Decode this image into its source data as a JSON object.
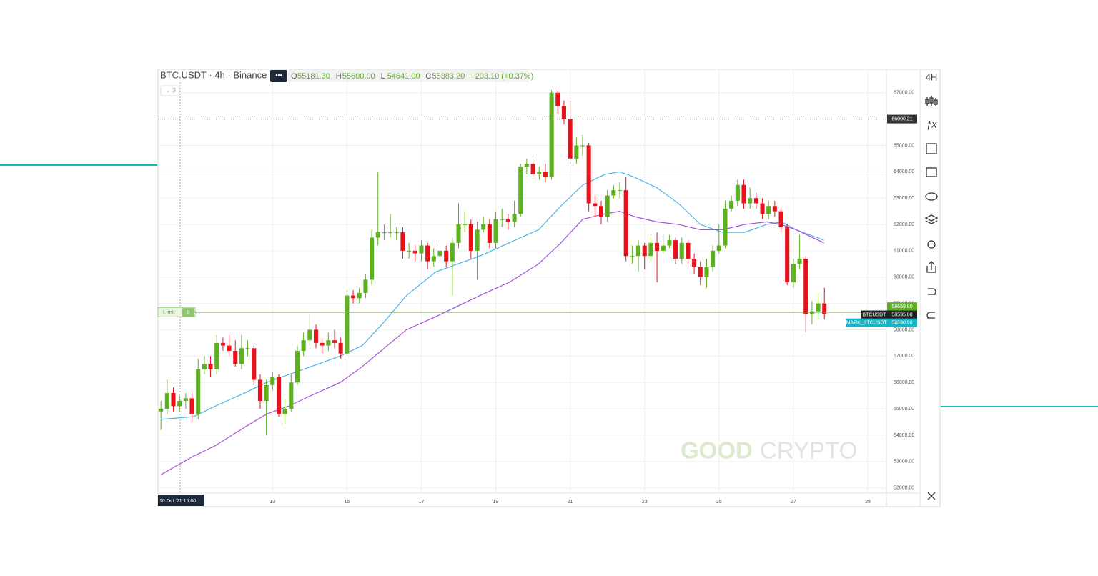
{
  "chart_data": {
    "type": "candlestick",
    "title": "BTC.USDT · 4h · Binance",
    "ohlc_legend": [
      {
        "key": "O",
        "value": "55181.30"
      },
      {
        "key": "H",
        "value": "55600.00"
      },
      {
        "key": "L",
        "value": "54641.00"
      },
      {
        "key": "C",
        "value": "55383.20"
      },
      {
        "key": "",
        "value": "+203.10 (+0.37%)"
      }
    ],
    "indicator_count": "3",
    "timeframe_button": "4H",
    "crosshair_label": "10 Oct '21 15:00",
    "watermark": [
      "GOOD",
      "CRYPTO"
    ],
    "colors": {
      "up": "#5db01f",
      "down": "#e8121d"
    },
    "x": [
      10,
      10.167,
      10.333,
      10.5,
      10.667,
      10.833,
      11,
      11.167,
      11.333,
      11.5,
      11.667,
      11.833,
      12,
      12.167,
      12.333,
      12.5,
      12.667,
      12.833,
      13,
      13.167,
      13.333,
      13.5,
      13.667,
      13.833,
      14,
      14.167,
      14.333,
      14.5,
      14.667,
      14.833,
      15,
      15.167,
      15.333,
      15.5,
      15.667,
      15.833,
      16,
      16.167,
      16.333,
      16.5,
      16.667,
      16.833,
      17,
      17.167,
      17.333,
      17.5,
      17.667,
      17.833,
      18,
      18.167,
      18.333,
      18.5,
      18.667,
      18.833,
      19,
      19.167,
      19.333,
      19.5,
      19.667,
      19.833,
      20,
      20.167,
      20.333,
      20.5,
      20.667,
      20.833,
      21,
      21.167,
      21.333,
      21.5,
      21.667,
      21.833,
      22,
      22.167,
      22.333,
      22.5,
      22.667,
      22.833,
      23,
      23.167,
      23.333,
      23.5,
      23.667,
      23.833,
      24,
      24.167,
      24.333,
      24.5,
      24.667,
      24.833,
      25,
      25.167,
      25.333,
      25.5,
      25.667,
      25.833,
      26,
      26.167,
      26.333,
      26.5,
      26.667,
      26.833,
      27,
      27.167,
      27.333,
      27.5,
      27.667,
      27.833
    ],
    "open": [
      54900,
      55000,
      55600,
      55100,
      55300,
      55400,
      54800,
      56500,
      56700,
      56500,
      57500,
      57400,
      57200,
      56700,
      57300,
      57300,
      56100,
      55300,
      55900,
      56200,
      54800,
      55000,
      56000,
      57200,
      57600,
      58000,
      57500,
      57400,
      57600,
      57500,
      57100,
      59300,
      59200,
      59400,
      59900,
      61500,
      61700,
      61700,
      61700,
      61700,
      61000,
      61000,
      60900,
      61200,
      60600,
      60800,
      61000,
      60600,
      61300,
      62000,
      62000,
      61000,
      61800,
      62000,
      61300,
      62200,
      62200,
      62100,
      62400,
      64200,
      64300,
      63900,
      64000,
      63800,
      67000,
      66500,
      66000,
      64500,
      65000,
      65000,
      62800,
      62700,
      62300,
      63100,
      63300,
      63300,
      60800,
      60800,
      61200,
      60800,
      61300,
      61000,
      61200,
      61400,
      60700,
      61300,
      60700,
      60400,
      60000,
      60400,
      61000,
      61200,
      62600,
      62900,
      63500,
      62800,
      63000,
      62800,
      62400,
      62700,
      62500,
      61900,
      59800,
      60500,
      60700,
      58600,
      58700,
      59000
    ],
    "high": [
      55300,
      56100,
      55800,
      55500,
      55600,
      55600,
      56900,
      57000,
      57000,
      57800,
      57700,
      57800,
      57600,
      57800,
      57600,
      57400,
      56300,
      56100,
      56400,
      56300,
      55400,
      56300,
      57400,
      57900,
      58600,
      58200,
      57700,
      57900,
      58000,
      57700,
      59500,
      59500,
      59600,
      60100,
      61800,
      64000,
      62000,
      62400,
      61900,
      61900,
      61300,
      61200,
      61400,
      61300,
      61100,
      61300,
      61200,
      61500,
      62800,
      62500,
      62200,
      62100,
      62300,
      62200,
      62500,
      62600,
      62400,
      62900,
      64300,
      64500,
      64500,
      64200,
      64300,
      67100,
      67100,
      66700,
      66700,
      65300,
      65400,
      65100,
      63100,
      62900,
      63300,
      63500,
      63600,
      63800,
      61200,
      61400,
      61300,
      61500,
      61700,
      61600,
      61600,
      61500,
      61500,
      61400,
      60900,
      60600,
      60700,
      61200,
      62000,
      62900,
      63100,
      63700,
      63700,
      63400,
      63200,
      63000,
      62900,
      62900,
      62600,
      62000,
      60700,
      61600,
      60800,
      59100,
      59400,
      59600
    ],
    "low": [
      54200,
      54800,
      54900,
      54900,
      55000,
      54500,
      54600,
      56300,
      56200,
      56300,
      57200,
      57000,
      56600,
      56500,
      57000,
      55900,
      55000,
      54000,
      55700,
      54700,
      54400,
      54900,
      55900,
      57000,
      57400,
      57300,
      57100,
      57200,
      57300,
      56900,
      57000,
      59000,
      59000,
      59200,
      59700,
      61200,
      61400,
      61500,
      61400,
      60700,
      60700,
      60600,
      60600,
      60300,
      60400,
      60600,
      60400,
      59300,
      61100,
      61700,
      60700,
      59900,
      61700,
      61100,
      61100,
      61900,
      61800,
      61900,
      62300,
      63900,
      63700,
      63700,
      63600,
      63700,
      66200,
      65800,
      64300,
      64300,
      64600,
      62500,
      62300,
      62000,
      62100,
      63000,
      63000,
      60600,
      60500,
      60200,
      60300,
      60600,
      59800,
      60900,
      61100,
      60500,
      60500,
      60500,
      60100,
      59700,
      59600,
      60200,
      60900,
      61100,
      62500,
      62700,
      62600,
      62600,
      62600,
      62200,
      62200,
      62300,
      61700,
      59700,
      59600,
      60300,
      57900,
      58200,
      58400,
      58400
    ],
    "close": [
      55000,
      55600,
      55100,
      55300,
      55400,
      54800,
      56500,
      56700,
      56500,
      57500,
      57400,
      57200,
      56700,
      57300,
      57300,
      56100,
      55300,
      55900,
      56200,
      54800,
      55000,
      56000,
      57200,
      57600,
      58000,
      57500,
      57400,
      57600,
      57500,
      57100,
      59300,
      59200,
      59400,
      59900,
      61500,
      61700,
      61700,
      61700,
      61700,
      61000,
      61000,
      60900,
      61200,
      60600,
      60800,
      61000,
      60600,
      61300,
      62000,
      62000,
      61000,
      61800,
      62000,
      61300,
      62200,
      62200,
      62100,
      62400,
      64200,
      64300,
      63900,
      64000,
      63800,
      67000,
      66500,
      66000,
      64500,
      65000,
      65000,
      62800,
      62700,
      62300,
      63100,
      63300,
      63300,
      60800,
      60800,
      61200,
      60800,
      61300,
      61000,
      61200,
      61400,
      60700,
      61300,
      60700,
      60400,
      60000,
      60400,
      61000,
      61200,
      62600,
      62900,
      63500,
      62800,
      63000,
      62800,
      62400,
      62700,
      62500,
      61900,
      59800,
      60500,
      60700,
      58600,
      58700,
      59000,
      58595
    ],
    "series": [
      {
        "color": "#4db3e6",
        "x": [
          10,
          10.87,
          11.46,
          12.25,
          12.84,
          13.43,
          14.03,
          14.82,
          15.41,
          16,
          16.6,
          17.39,
          17.98,
          18.57,
          19.36,
          20.15,
          20.75,
          21.34,
          21.93,
          22.33,
          22.72,
          23.32,
          23.91,
          24.5,
          25.09,
          25.69,
          26.28,
          26.68,
          27.07,
          27.82
        ],
        "values": [
          54600,
          54700,
          55100,
          55600,
          56000,
          56300,
          56600,
          57000,
          57400,
          58300,
          59300,
          60200,
          60500,
          60800,
          61300,
          61800,
          62700,
          63500,
          63900,
          64000,
          63800,
          63400,
          62800,
          62000,
          61700,
          61700,
          62000,
          62100,
          61800,
          61400
        ]
      },
      {
        "color": "#a552d8",
        "x": [
          10,
          10.87,
          11.46,
          12.25,
          12.84,
          13.43,
          14.03,
          14.82,
          15.41,
          16,
          16.6,
          17.39,
          17.98,
          18.57,
          19.36,
          20.15,
          20.75,
          21.34,
          21.93,
          22.33,
          22.72,
          23.32,
          23.91,
          24.5,
          25.09,
          25.69,
          26.28,
          26.68,
          27.07,
          27.82
        ],
        "values": [
          52500,
          53200,
          53600,
          54300,
          54800,
          55100,
          55500,
          56000,
          56600,
          57300,
          58000,
          58500,
          58900,
          59300,
          59800,
          60500,
          61300,
          62200,
          62400,
          62500,
          62300,
          62100,
          62000,
          61800,
          61800,
          62000,
          62100,
          62000,
          61800,
          61300
        ]
      }
    ],
    "price_lines": [
      {
        "value": 66000.21,
        "label": "66000.21",
        "color": "#333333",
        "style": "dotted"
      },
      {
        "value": 58659.8,
        "label": "58659.80",
        "color": "#5db01f",
        "style": "solid",
        "tag": "Limit",
        "tag_count": "0"
      },
      {
        "value": 58595.0,
        "label": "58595.00",
        "color": "#222222",
        "style": "solid",
        "tag": "BTCUSDT"
      },
      {
        "value": 58590.9,
        "label": "58590.90",
        "color": "#18b3c4",
        "style": "none",
        "tag": "MARK_BTCUSDT"
      }
    ],
    "xlim": [
      9.92,
      29.5
    ],
    "xticks": [
      13,
      15,
      17,
      19,
      21,
      23,
      25,
      27,
      29
    ],
    "ylim": [
      51800,
      67400
    ],
    "yticks": [
      {
        "value": 52000,
        "label": "52000.00"
      },
      {
        "value": 53000,
        "label": "53000.00"
      },
      {
        "value": 54000,
        "label": "54000.00"
      },
      {
        "value": 55000,
        "label": "55000.00"
      },
      {
        "value": 56000,
        "label": "56000.00"
      },
      {
        "value": 57000,
        "label": "57000.00"
      },
      {
        "value": 58000,
        "label": "58000.00"
      },
      {
        "value": 59000,
        "label": "59000.00"
      },
      {
        "value": 60000,
        "label": "60000.00"
      },
      {
        "value": 61000,
        "label": "61000.00"
      },
      {
        "value": 62000,
        "label": "62000.00"
      },
      {
        "value": 63000,
        "label": "63000.00"
      },
      {
        "value": 64000,
        "label": "64000.00"
      },
      {
        "value": 65000,
        "label": "65000.00"
      },
      {
        "value": 66000,
        "label": "66000.00"
      },
      {
        "value": 67000,
        "label": "67000.00"
      }
    ],
    "grid": true
  }
}
